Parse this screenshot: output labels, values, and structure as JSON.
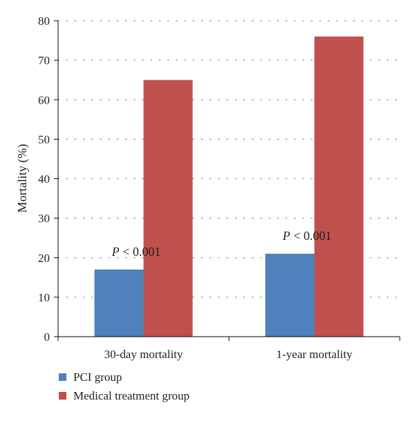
{
  "chart_data": {
    "type": "bar",
    "title": "",
    "xlabel": "",
    "ylabel": "Mortality (%)",
    "ylim": [
      0,
      80
    ],
    "yticks": [
      0,
      10,
      20,
      30,
      40,
      50,
      60,
      70,
      80
    ],
    "grid": "horizontal-dotted",
    "legend_position": "bottom-left",
    "categories": [
      "30-day mortality",
      "1-year mortality"
    ],
    "series": [
      {
        "name": "PCI group",
        "color": "#4f81bd",
        "values": [
          17,
          21
        ]
      },
      {
        "name": "Medical treatment group",
        "color": "#c0504d",
        "values": [
          65,
          76
        ]
      }
    ],
    "annotations": [
      {
        "category_index": 0,
        "series_index": 0,
        "p_label": "P",
        "relation": "< 0.001"
      },
      {
        "category_index": 1,
        "series_index": 0,
        "p_label": "P",
        "relation": "< 0.001"
      }
    ]
  }
}
